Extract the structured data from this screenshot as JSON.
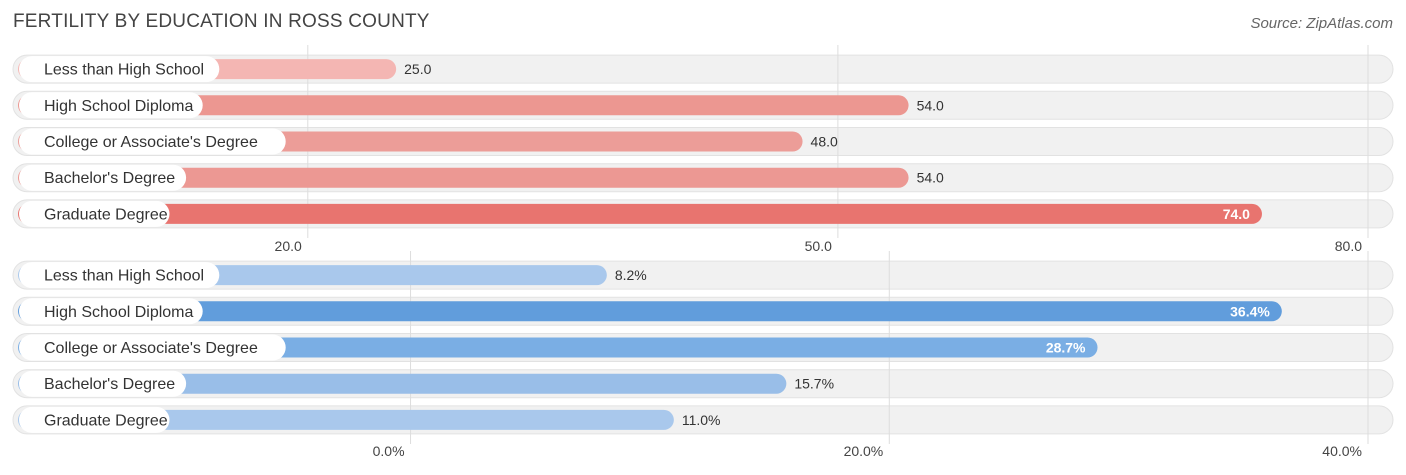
{
  "title": "FERTILITY BY EDUCATION IN ROSS COUNTY",
  "source": "Source: ZipAtlas.com",
  "chart_data": [
    {
      "type": "bar",
      "orientation": "horizontal",
      "categories": [
        "Less than High School",
        "High School Diploma",
        "College or Associate's Degree",
        "Bachelor's Degree",
        "Graduate Degree"
      ],
      "values": [
        25.0,
        54.0,
        48.0,
        54.0,
        74.0
      ],
      "value_labels": [
        "25.0",
        "54.0",
        "48.0",
        "54.0",
        "74.0"
      ],
      "xlim": [
        3.6,
        80.0
      ],
      "ticks": [
        20.0,
        50.0,
        80.0
      ],
      "tick_labels": [
        "20.0",
        "50.0",
        "80.0"
      ],
      "grid": true,
      "colors": [
        "#f4b6b3",
        "#ec9791",
        "#ec9d98",
        "#ec9893",
        "#e8746f"
      ]
    },
    {
      "type": "bar",
      "orientation": "horizontal",
      "categories": [
        "Less than High School",
        "High School Diploma",
        "College or Associate's Degree",
        "Bachelor's Degree",
        "Graduate Degree"
      ],
      "values": [
        8.2,
        36.4,
        28.7,
        15.7,
        11.0
      ],
      "value_labels": [
        "8.2%",
        "36.4%",
        "28.7%",
        "15.7%",
        "11.0%"
      ],
      "xlim": [
        -16.4,
        40.0
      ],
      "ticks": [
        0.0,
        20.0,
        40.0
      ],
      "tick_labels": [
        "0.0%",
        "20.0%",
        "40.0%"
      ],
      "grid": true,
      "colors": [
        "#a9c8ec",
        "#619ddc",
        "#7aaee4",
        "#99bee8",
        "#a9c8ec"
      ]
    }
  ]
}
